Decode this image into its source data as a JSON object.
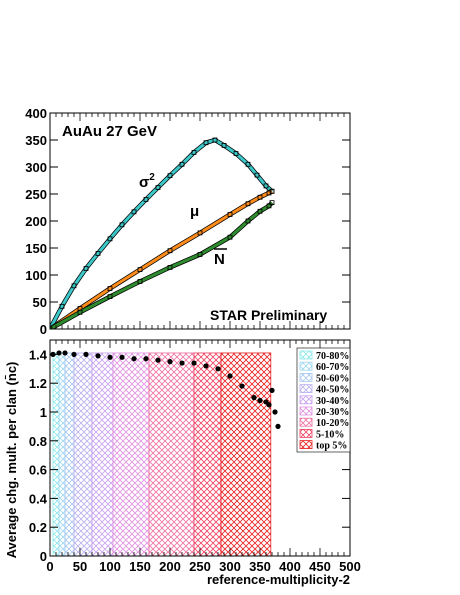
{
  "chart_data": [
    {
      "type": "scatter",
      "title": "",
      "xlabel": "",
      "ylabel": "",
      "xlim": [
        0,
        500
      ],
      "ylim": [
        0,
        400
      ],
      "yticks": [
        0,
        50,
        100,
        150,
        200,
        250,
        300,
        350,
        400
      ],
      "annotations": {
        "system": "AuAu 27 GeV",
        "preliminary": "STAR Preliminary",
        "sigma_base": "σ",
        "sigma_exp": "2",
        "mu": "μ",
        "nbar": "N"
      },
      "series": [
        {
          "name": "σ2",
          "color": "#3cc8c8",
          "x": [
            0,
            20,
            40,
            60,
            80,
            100,
            120,
            140,
            160,
            180,
            200,
            220,
            240,
            260,
            275,
            290,
            310,
            330,
            345,
            360,
            370
          ],
          "y": [
            0,
            42,
            80,
            112,
            140,
            167,
            193,
            217,
            240,
            262,
            284,
            305,
            327,
            345,
            350,
            340,
            325,
            305,
            285,
            265,
            255
          ]
        },
        {
          "name": "μ",
          "color": "#ff8c1a",
          "x": [
            0,
            50,
            100,
            150,
            200,
            250,
            300,
            330,
            350,
            365,
            370
          ],
          "y": [
            0,
            38,
            75,
            110,
            145,
            178,
            212,
            232,
            244,
            252,
            255
          ]
        },
        {
          "name": "N",
          "color": "#2e8b2e",
          "x": [
            0,
            50,
            100,
            150,
            200,
            250,
            300,
            330,
            350,
            365,
            370
          ],
          "y": [
            0,
            31,
            60,
            88,
            114,
            138,
            170,
            200,
            218,
            228,
            234
          ]
        }
      ]
    },
    {
      "type": "scatter",
      "title": "",
      "xlabel": "reference-multiplicity-2",
      "ylabel": "Average chg. mult. per clan (n̄c)",
      "xlim": [
        0,
        500
      ],
      "ylim": [
        0,
        1.5
      ],
      "xticks": [
        0,
        50,
        100,
        150,
        200,
        250,
        300,
        350,
        400,
        450,
        500
      ],
      "yticks": [
        0,
        0.2,
        0.4,
        0.6,
        0.8,
        1,
        1.2,
        1.4
      ],
      "ytick_labels": [
        "0",
        "0.2",
        "0.4",
        "0.6",
        "0.8",
        "1",
        "1.2",
        "1.4"
      ],
      "legend_position": "top-right",
      "centrality_bins": [
        {
          "label": "70-80%",
          "x0": 5,
          "x1": 15,
          "color": "#8ce8e8"
        },
        {
          "label": "60-70%",
          "x0": 15,
          "x1": 25,
          "color": "#9fd8f0"
        },
        {
          "label": "50-60%",
          "x0": 25,
          "x1": 40,
          "color": "#a8c8f0"
        },
        {
          "label": "40-50%",
          "x0": 40,
          "x1": 70,
          "color": "#b8b0f0"
        },
        {
          "label": "30-40%",
          "x0": 70,
          "x1": 105,
          "color": "#c8a0f0"
        },
        {
          "label": "20-30%",
          "x0": 105,
          "x1": 165,
          "color": "#e090e0"
        },
        {
          "label": "10-20%",
          "x0": 165,
          "x1": 240,
          "color": "#f070a0"
        },
        {
          "label": "5-10%",
          "x0": 240,
          "x1": 285,
          "color": "#f04060"
        },
        {
          "label": "top 5%",
          "x0": 285,
          "x1": 368,
          "color": "#e82020"
        }
      ],
      "series": [
        {
          "name": "",
          "color": "#000000",
          "x": [
            5,
            15,
            25,
            40,
            60,
            80,
            100,
            120,
            140,
            160,
            180,
            200,
            220,
            240,
            260,
            280,
            300,
            320,
            340,
            350,
            360,
            365,
            370,
            375,
            380
          ],
          "y": [
            1.4,
            1.41,
            1.41,
            1.4,
            1.4,
            1.39,
            1.38,
            1.38,
            1.37,
            1.37,
            1.36,
            1.35,
            1.34,
            1.34,
            1.32,
            1.3,
            1.25,
            1.18,
            1.1,
            1.08,
            1.07,
            1.05,
            1.15,
            1.0,
            0.9
          ]
        }
      ]
    }
  ]
}
